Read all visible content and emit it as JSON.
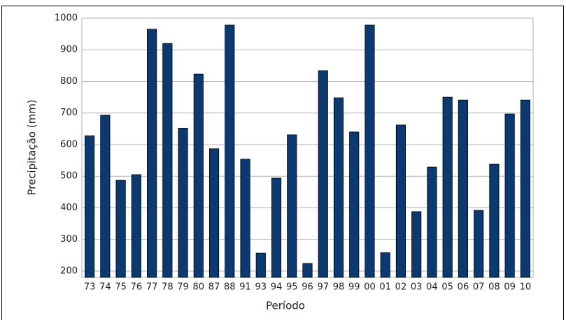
{
  "chart_data": {
    "type": "bar",
    "x_label": "Período",
    "y_label": "Precipitação (mm)",
    "categories": [
      "73",
      "74",
      "75",
      "76",
      "77",
      "78",
      "79",
      "80",
      "87",
      "88",
      "91",
      "93",
      "94",
      "95",
      "96",
      "97",
      "98",
      "99",
      "00",
      "01",
      "02",
      "03",
      "04",
      "05",
      "06",
      "07",
      "08",
      "09",
      "10"
    ],
    "values": [
      628,
      693,
      487,
      505,
      965,
      920,
      652,
      823,
      587,
      978,
      554,
      257,
      494,
      631,
      224,
      834,
      748,
      640,
      978,
      258,
      662,
      388,
      529,
      750,
      741,
      392,
      538,
      697,
      741
    ],
    "color": "#0c3a70",
    "ylim": [
      180,
      1000
    ],
    "yticks": [
      200,
      300,
      400,
      500,
      600,
      700,
      800,
      900,
      1000
    ],
    "grid": true
  }
}
